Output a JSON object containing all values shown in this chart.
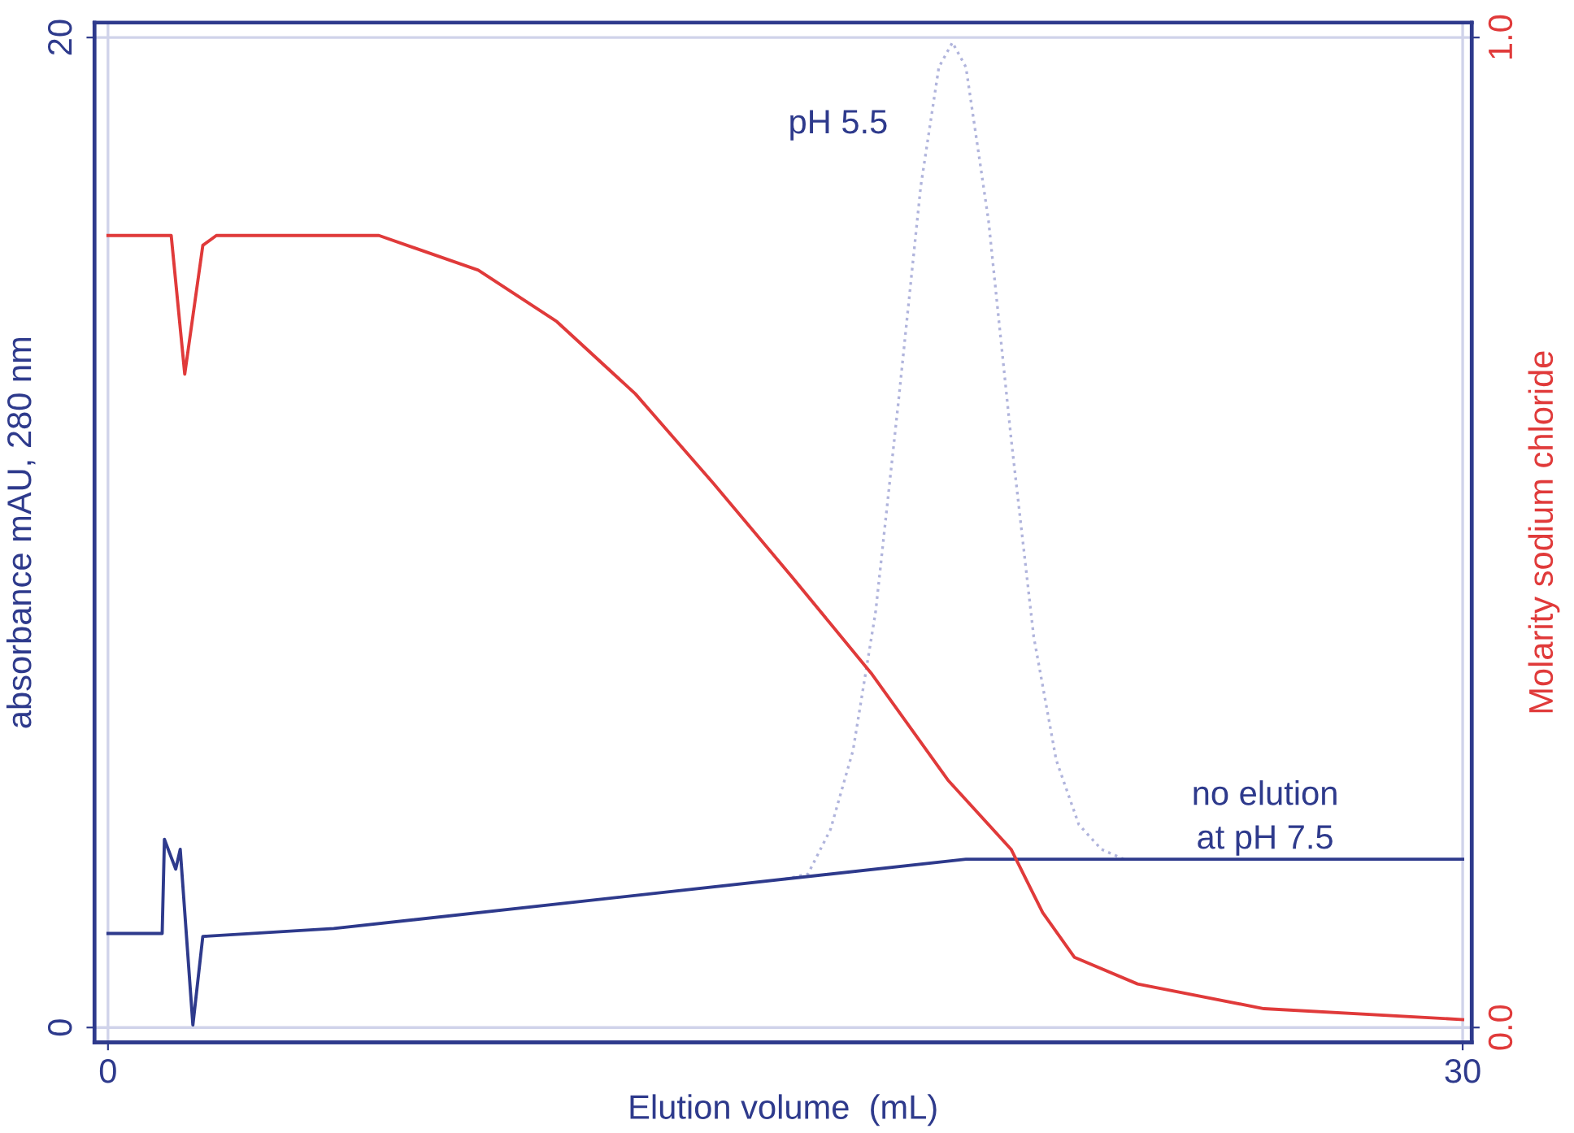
{
  "chart_data": {
    "type": "line",
    "xlabel": "Elution volume  (mL)",
    "ylabel": "absorbance mAU, 280 nm",
    "y2label": "Molarity sodium chloride",
    "xlim": [
      -0.3,
      30.2
    ],
    "xticks": [
      0,
      30
    ],
    "ylim": [
      -0.3,
      20.3
    ],
    "yticks": [
      0,
      20
    ],
    "y2lim": [
      -0.015,
      1.015
    ],
    "y2ticks": [
      {
        "value": 0,
        "label": "0.0"
      },
      {
        "value": 1,
        "label": "1.0"
      }
    ],
    "grid": true,
    "legend": false,
    "marker": "none",
    "annotations": [
      "pH 5.5",
      "no elution\nat pH 7.5"
    ],
    "series": [
      {
        "color": "#e03a3a",
        "axis": "y2",
        "line_style": "solid",
        "x": [
          0,
          1.4,
          1.7,
          2.1,
          2.4,
          6.0,
          8.2,
          9.94,
          11.68,
          13.4,
          15.15,
          16.9,
          18.6,
          20.0,
          20.7,
          21.4,
          22.8,
          25.6,
          30
        ],
        "values": [
          0.8,
          0.8,
          0.66,
          0.79,
          0.8,
          0.8,
          0.765,
          0.713,
          0.64,
          0.55,
          0.455,
          0.358,
          0.25,
          0.18,
          0.116,
          0.071,
          0.044,
          0.019,
          0.008
        ]
      },
      {
        "color": "#b0b4dc",
        "axis": "y",
        "line_style": "dotted",
        "x": [
          15.0,
          15.5,
          16.0,
          16.5,
          17.0,
          17.5,
          18.0,
          18.4,
          18.7,
          19.0,
          19.5,
          20.0,
          20.5,
          21.0,
          21.5,
          22.0,
          22.5
        ],
        "values": [
          3.0,
          3.1,
          4.0,
          5.6,
          8.4,
          12.6,
          17.0,
          19.4,
          19.9,
          19.4,
          16.3,
          11.9,
          7.9,
          5.4,
          4.1,
          3.6,
          3.4
        ]
      },
      {
        "color": "#2e3a8c",
        "axis": "y",
        "line_style": "solid",
        "x": [
          0,
          1.2,
          1.25,
          1.5,
          1.6,
          1.88,
          2.1,
          5.0,
          19.0,
          30
        ],
        "values": [
          1.9,
          1.9,
          3.8,
          3.2,
          3.6,
          0.05,
          1.84,
          2.0,
          3.4,
          3.4
        ]
      }
    ]
  }
}
